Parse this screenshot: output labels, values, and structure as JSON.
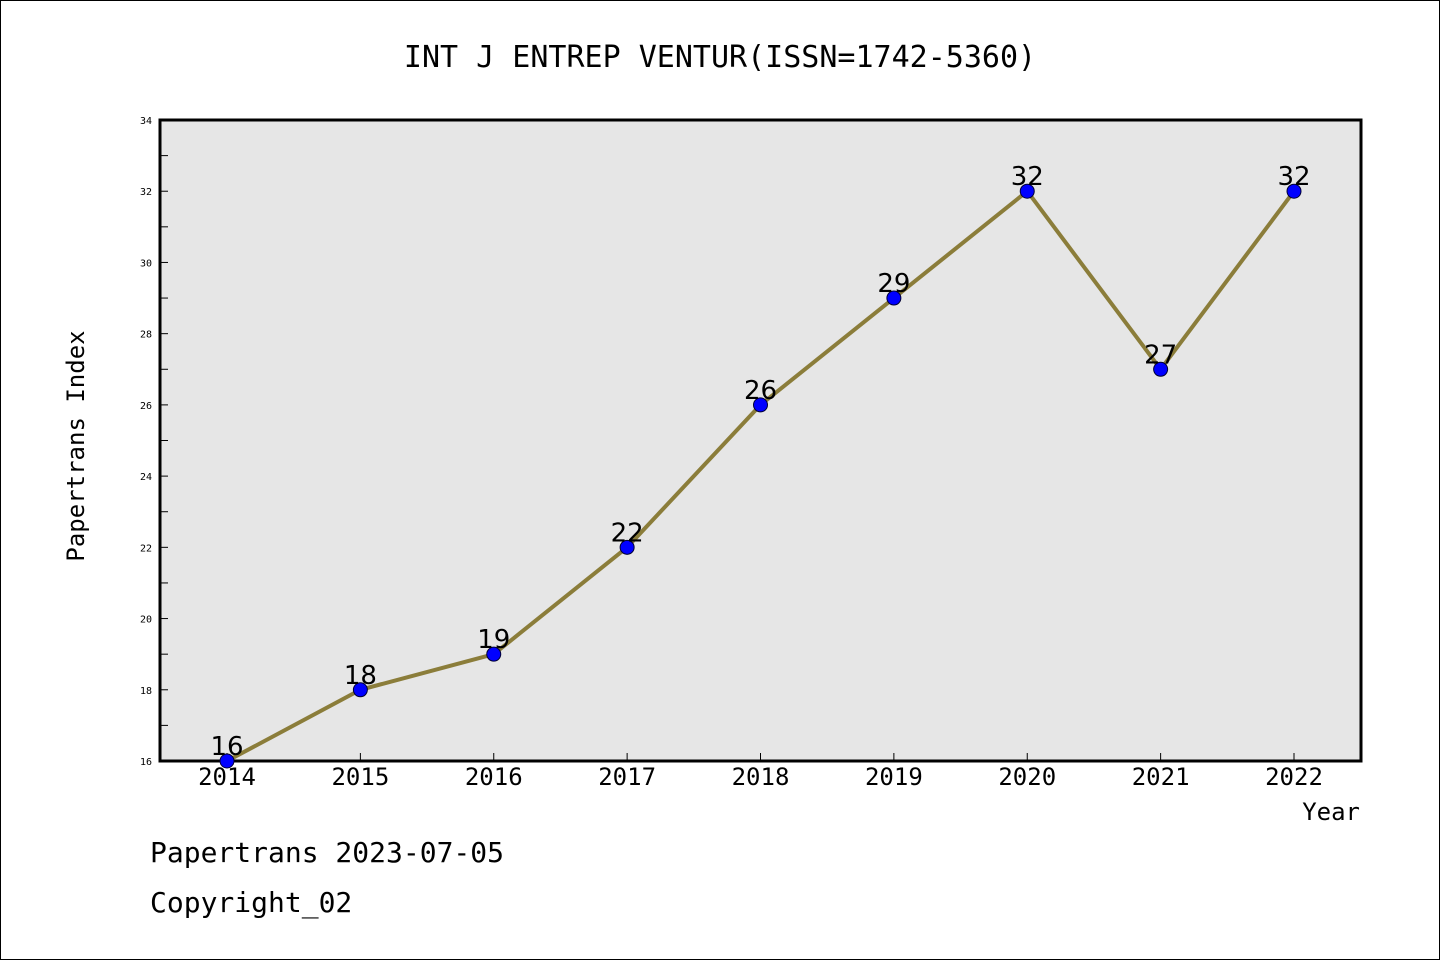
{
  "chart_data": {
    "type": "line",
    "title": "INT J ENTREP VENTUR(ISSN=1742-5360)",
    "xlabel": "Year",
    "ylabel": "Papertrans Index",
    "categories": [
      "2014",
      "2015",
      "2016",
      "2017",
      "2018",
      "2019",
      "2020",
      "2021",
      "2022"
    ],
    "values": [
      16,
      18,
      19,
      22,
      26,
      29,
      32,
      27,
      32
    ],
    "data_labels": [
      "16",
      "18",
      "19",
      "22",
      "26",
      "29",
      "32",
      "27",
      "32"
    ],
    "ylim": [
      16,
      34
    ],
    "yticks": [
      "16",
      "18",
      "20",
      "22",
      "24",
      "26",
      "28",
      "30",
      "32",
      "34"
    ],
    "grid": false,
    "legend": "none",
    "colors": {
      "line": "#8B7D3A",
      "marker": "#0000FF",
      "plot_background": "#E6E6E6"
    }
  },
  "footer": {
    "line1": "Papertrans 2023-07-05",
    "line2": "Copyright_02"
  }
}
